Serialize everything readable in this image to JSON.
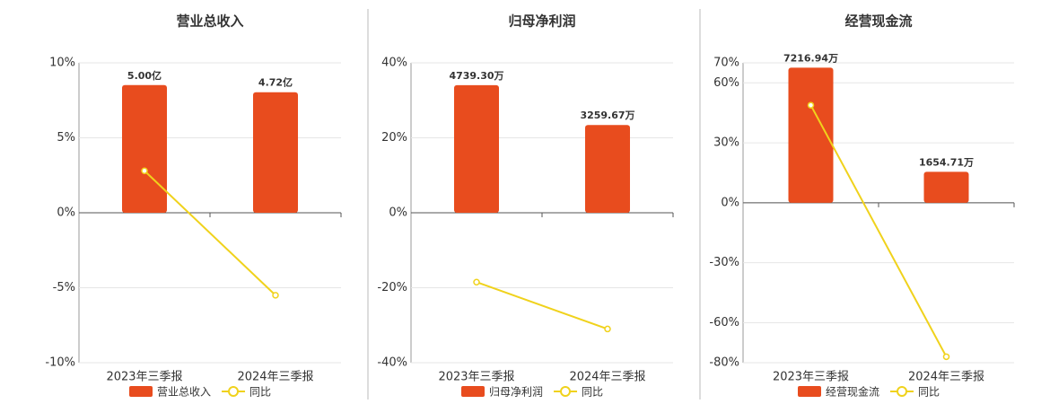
{
  "chart_data": [
    {
      "type": "bar",
      "title": "营业总收入",
      "categories": [
        "2023年三季报",
        "2024年三季报"
      ],
      "series": [
        {
          "name": "营业总收入",
          "color": "#e84c1e",
          "axis": "y2",
          "values": [
            5.0,
            4.72
          ],
          "value_labels": [
            "5.00亿",
            "4.72亿"
          ]
        },
        {
          "name": "同比",
          "color": "#f0d21c",
          "values": [
            2.8,
            -5.5
          ]
        }
      ],
      "ylim": [
        -10,
        10
      ],
      "yticks": [
        {
          "value": -10,
          "label": "-10%"
        },
        {
          "value": -5,
          "label": "-5%"
        },
        {
          "value": 0,
          "label": "0%"
        },
        {
          "value": 5,
          "label": "5%"
        },
        {
          "value": 10,
          "label": "10%"
        }
      ],
      "y2lim": [
        -5.87,
        5.87
      ],
      "grid": true
    },
    {
      "type": "bar",
      "title": "归母净利润",
      "categories": [
        "2023年三季报",
        "2024年三季报"
      ],
      "series": [
        {
          "name": "归母净利润",
          "color": "#e84c1e",
          "axis": "y2",
          "values": [
            4739.3,
            3259.67
          ],
          "value_labels": [
            "4739.30万",
            "3259.67万"
          ]
        },
        {
          "name": "同比",
          "color": "#f0d21c",
          "values": [
            -18.5,
            -31
          ]
        }
      ],
      "ylim": [
        -40,
        40
      ],
      "yticks": [
        {
          "value": -40,
          "label": "-40%"
        },
        {
          "value": -20,
          "label": "-20%"
        },
        {
          "value": 0,
          "label": "0%"
        },
        {
          "value": 20,
          "label": "20%"
        },
        {
          "value": 40,
          "label": "40%"
        }
      ],
      "y2lim": [
        -5568,
        5568
      ],
      "grid": true
    },
    {
      "type": "bar",
      "title": "经营现金流",
      "categories": [
        "2023年三季报",
        "2024年三季报"
      ],
      "series": [
        {
          "name": "经营现金流",
          "color": "#e84c1e",
          "axis": "y2",
          "values": [
            7216.94,
            1654.71
          ],
          "value_labels": [
            "7216.94万",
            "1654.71万"
          ]
        },
        {
          "name": "同比",
          "color": "#f0d21c",
          "values": [
            48.8,
            -77
          ]
        }
      ],
      "ylim": [
        -80,
        70
      ],
      "yticks": [
        {
          "value": -80,
          "label": "-80%"
        },
        {
          "value": -60,
          "label": "-60%"
        },
        {
          "value": -30,
          "label": "-30%"
        },
        {
          "value": 0,
          "label": "0%"
        },
        {
          "value": 30,
          "label": "30%"
        },
        {
          "value": 60,
          "label": "60%"
        },
        {
          "value": 70,
          "label": "70%"
        }
      ],
      "y2lim": [
        -8540,
        7473
      ],
      "grid": true
    }
  ]
}
